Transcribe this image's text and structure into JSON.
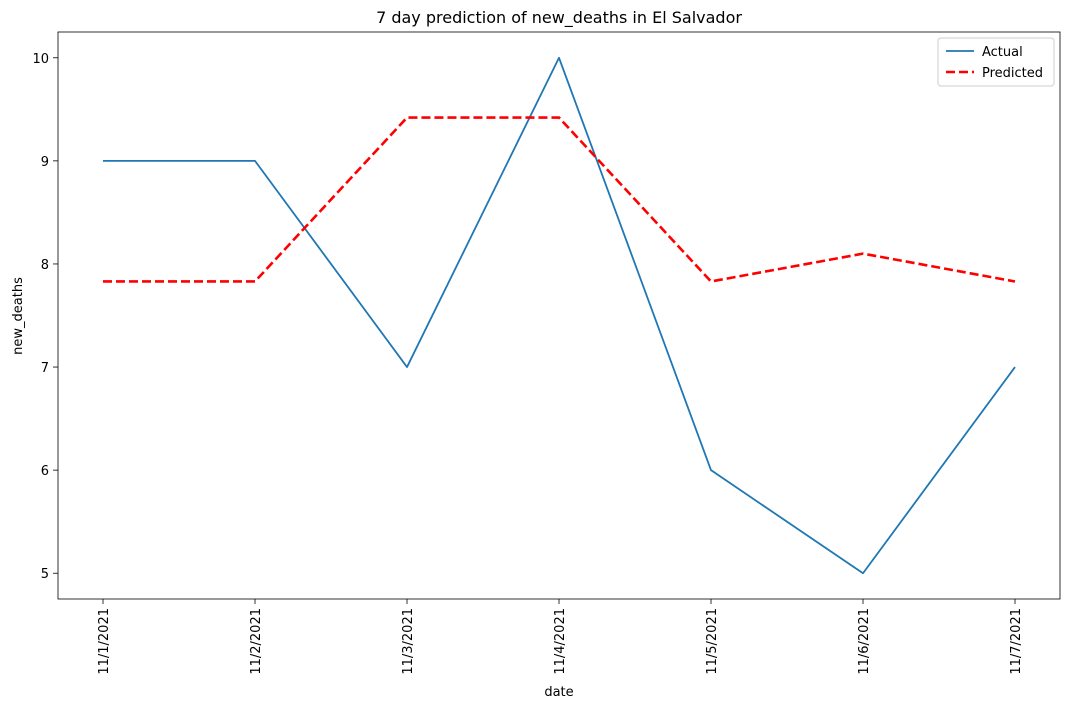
{
  "chart_data": {
    "type": "line",
    "title": "7 day prediction of new_deaths in El Salvador",
    "xlabel": "date",
    "ylabel": "new_deaths",
    "x": [
      "11/1/2021",
      "11/2/2021",
      "11/3/2021",
      "11/4/2021",
      "11/5/2021",
      "11/6/2021",
      "11/7/2021"
    ],
    "y_ticks": [
      5,
      6,
      7,
      8,
      9,
      10
    ],
    "ylim": [
      4.75,
      10.25
    ],
    "grid": false,
    "legend_position": "top-right",
    "series": [
      {
        "name": "Actual",
        "color": "#1f77b4",
        "style": "solid",
        "values": [
          9,
          9,
          7,
          10,
          6,
          5,
          7
        ]
      },
      {
        "name": "Predicted",
        "color": "#ff0000",
        "style": "dashed",
        "values": [
          7.83,
          7.83,
          9.42,
          9.42,
          7.83,
          8.1,
          7.83
        ]
      }
    ]
  }
}
